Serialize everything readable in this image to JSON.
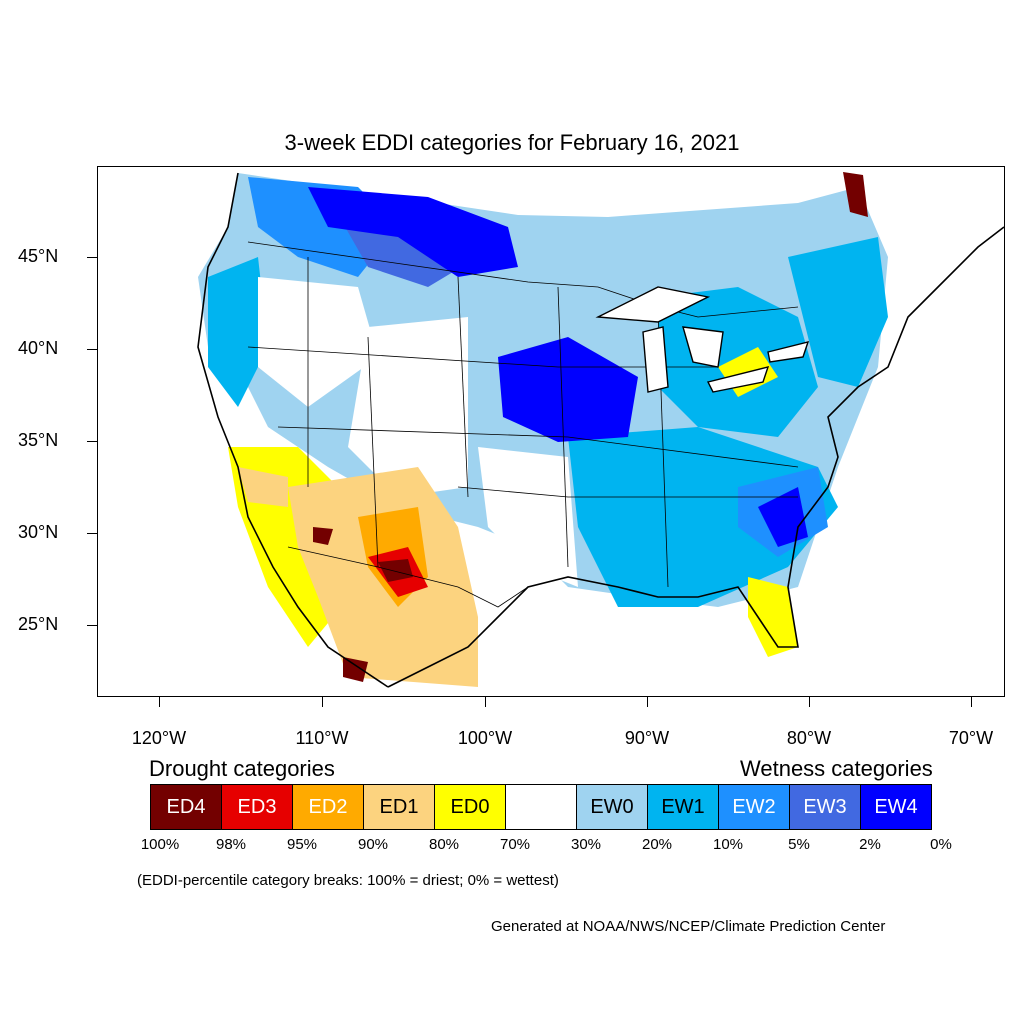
{
  "title": "3-week EDDI categories for February 16, 2021",
  "axes": {
    "y_labels": [
      "45°N",
      "40°N",
      "35°N",
      "30°N",
      "25°N"
    ],
    "x_labels": [
      "120°W",
      "110°W",
      "100°W",
      "90°W",
      "80°W",
      "70°W"
    ]
  },
  "legend": {
    "drought_title": "Drought categories",
    "wetness_title": "Wetness categories",
    "categories": [
      {
        "label": "ED4",
        "color": "#730000",
        "text_color": "#ffffff"
      },
      {
        "label": "ED3",
        "color": "#e60000",
        "text_color": "#ffffff"
      },
      {
        "label": "ED2",
        "color": "#ffaa00",
        "text_color": "#ffffff"
      },
      {
        "label": "ED1",
        "color": "#fcd37f",
        "text_color": "#000000"
      },
      {
        "label": "ED0",
        "color": "#ffff00",
        "text_color": "#000000"
      },
      {
        "label": "",
        "color": "#ffffff",
        "text_color": "#000000"
      },
      {
        "label": "EW0",
        "color": "#9fd3f0",
        "text_color": "#000000"
      },
      {
        "label": "EW1",
        "color": "#00b4f0",
        "text_color": "#000000"
      },
      {
        "label": "EW2",
        "color": "#1e90ff",
        "text_color": "#ffffff"
      },
      {
        "label": "EW3",
        "color": "#4169e1",
        "text_color": "#ffffff"
      },
      {
        "label": "EW4",
        "color": "#0000ff",
        "text_color": "#ffffff"
      }
    ],
    "breaks": [
      "100%",
      "98%",
      "95%",
      "90%",
      "80%",
      "70%",
      "30%",
      "20%",
      "10%",
      "5%",
      "2%",
      "0%"
    ]
  },
  "note": "(EDDI-percentile category breaks: 100% = driest; 0% = wettest)",
  "credit": "Generated at NOAA/NWS/NCEP/Climate Prediction Center"
}
